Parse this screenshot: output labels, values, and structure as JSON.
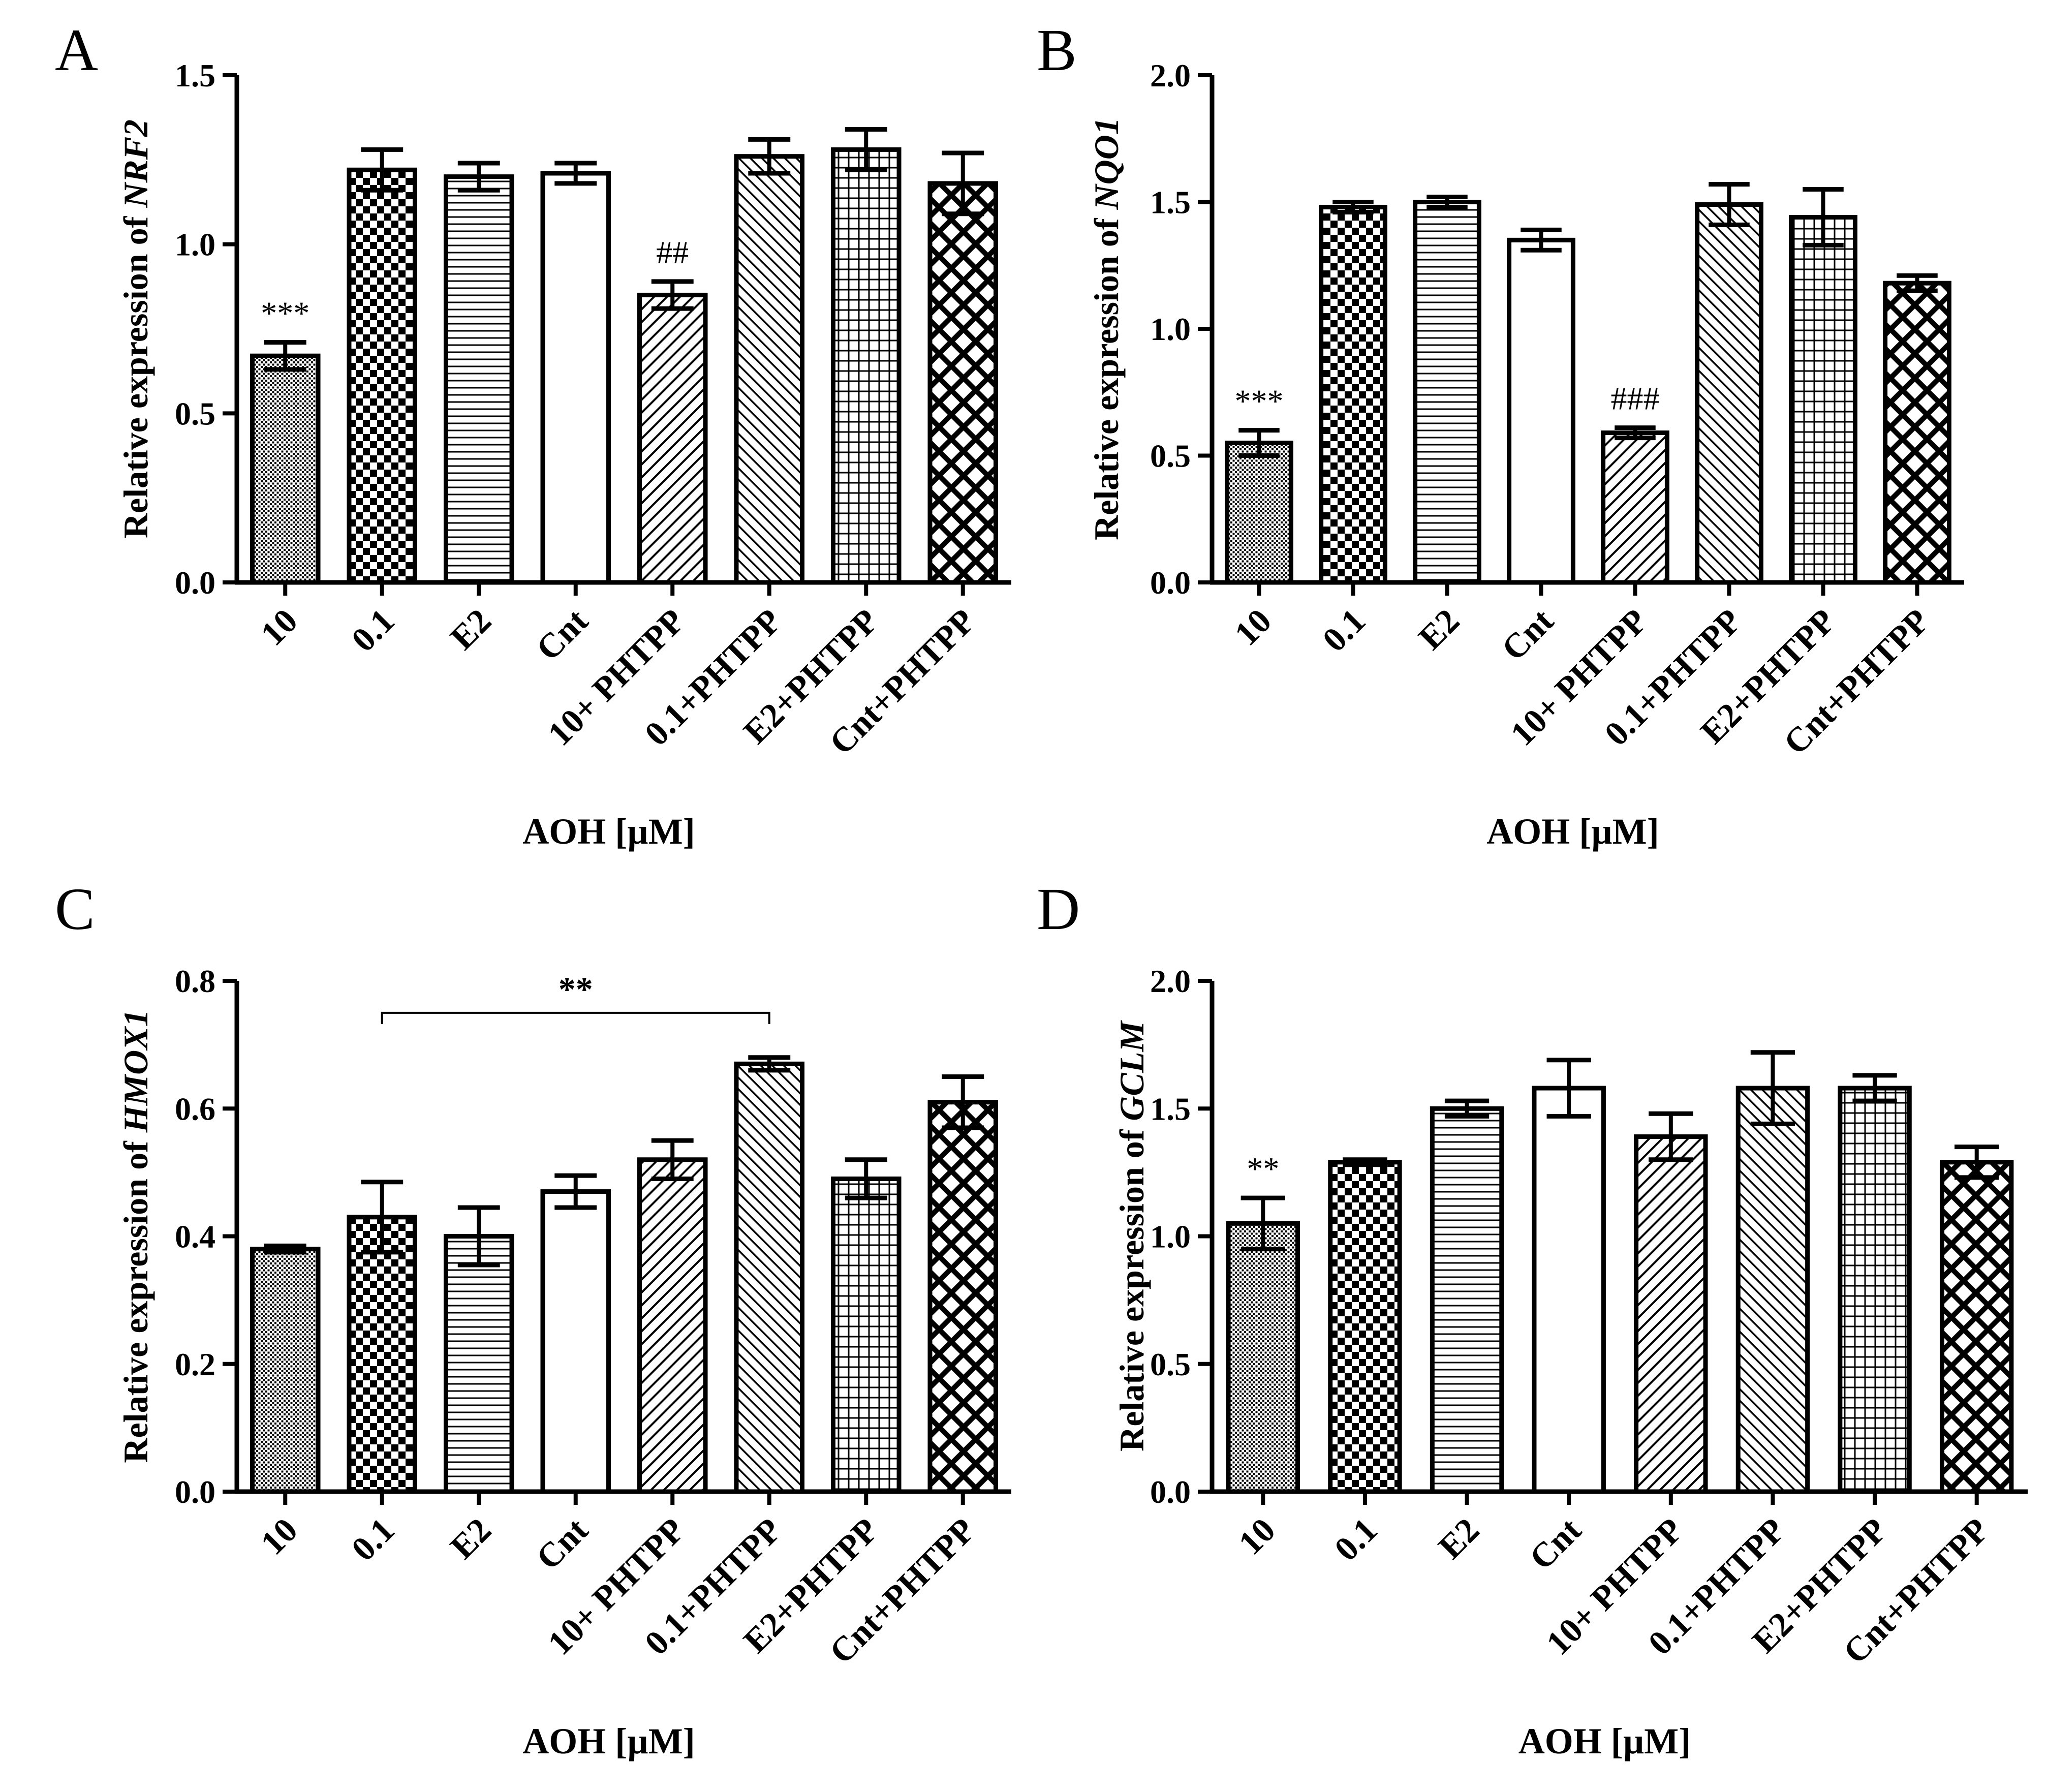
{
  "chart_data": [
    {
      "panel": "A",
      "type": "bar",
      "categories": [
        "10",
        "0.1",
        "E2",
        "Cnt",
        "10+ PHTPP",
        "0.1+PHTPP",
        "E2+PHTPP",
        "Cnt+PHTPP"
      ],
      "values": [
        0.67,
        1.22,
        1.2,
        1.21,
        0.85,
        1.26,
        1.28,
        1.18
      ],
      "errors": [
        0.04,
        0.06,
        0.04,
        0.03,
        0.04,
        0.05,
        0.06,
        0.09
      ],
      "patterns": [
        "dots",
        "checker",
        "hlines",
        "none",
        "diag",
        "backdiag",
        "grid",
        "crosshatch"
      ],
      "ylabel_prefix": "Relative expression of ",
      "ylabel_gene": "NRF2",
      "xlabel": "AOH [µM]",
      "ylim": [
        0,
        1.5
      ],
      "yticks": [
        "0.0",
        "0.5",
        "1.0",
        "1.5"
      ],
      "annotations": [
        {
          "category": "10",
          "text": "***"
        },
        {
          "category": "10+ PHTPP",
          "text": "##"
        }
      ]
    },
    {
      "panel": "B",
      "type": "bar",
      "categories": [
        "10",
        "0.1",
        "E2",
        "Cnt",
        "10+ PHTPP",
        "0.1+PHTPP",
        "E2+PHTPP",
        "Cnt+PHTPP"
      ],
      "values": [
        0.55,
        1.48,
        1.5,
        1.35,
        0.59,
        1.49,
        1.44,
        1.18
      ],
      "errors": [
        0.05,
        0.02,
        0.02,
        0.04,
        0.02,
        0.08,
        0.11,
        0.03
      ],
      "patterns": [
        "dots",
        "checker",
        "hlines",
        "none",
        "diag",
        "backdiag",
        "grid",
        "crosshatch"
      ],
      "ylabel_prefix": "Relative expression of ",
      "ylabel_gene": "NQO1",
      "xlabel": "AOH [µM]",
      "ylim": [
        0,
        2.0
      ],
      "yticks": [
        "0.0",
        "0.5",
        "1.0",
        "1.5",
        "2.0"
      ],
      "annotations": [
        {
          "category": "10",
          "text": "***"
        },
        {
          "category": "10+ PHTPP",
          "text": "###"
        }
      ]
    },
    {
      "panel": "C",
      "type": "bar",
      "categories": [
        "10",
        "0.1",
        "E2",
        "Cnt",
        "10+ PHTPP",
        "0.1+PHTPP",
        "E2+PHTPP",
        "Cnt+PHTPP"
      ],
      "values": [
        0.38,
        0.43,
        0.4,
        0.47,
        0.52,
        0.67,
        0.49,
        0.61
      ],
      "errors": [
        0.005,
        0.055,
        0.045,
        0.025,
        0.03,
        0.01,
        0.03,
        0.04
      ],
      "patterns": [
        "dots",
        "checker",
        "hlines",
        "none",
        "diag",
        "backdiag",
        "grid",
        "crosshatch"
      ],
      "ylabel_prefix": "Relative expression of ",
      "ylabel_gene": "HMOX1",
      "xlabel": "AOH [µM]",
      "ylim": [
        0,
        0.8
      ],
      "yticks": [
        "0.0",
        "0.2",
        "0.4",
        "0.6",
        "0.8"
      ],
      "annotations": [],
      "bracket": {
        "from": "0.1",
        "to": "0.1+PHTPP",
        "level": 0.75,
        "text": "**"
      }
    },
    {
      "panel": "D",
      "type": "bar",
      "categories": [
        "10",
        "0.1",
        "E2",
        "Cnt",
        "10+ PHTPP",
        "0.1+PHTPP",
        "E2+PHTPP",
        "Cnt+PHTPP"
      ],
      "values": [
        1.05,
        1.29,
        1.5,
        1.58,
        1.39,
        1.58,
        1.58,
        1.29
      ],
      "errors": [
        0.1,
        0.01,
        0.03,
        0.11,
        0.09,
        0.14,
        0.05,
        0.06
      ],
      "patterns": [
        "dots",
        "checker",
        "hlines",
        "none",
        "diag",
        "backdiag",
        "grid",
        "crosshatch"
      ],
      "ylabel_prefix": "Relative expression of ",
      "ylabel_gene": "GCLM",
      "xlabel": "AOH [µM]",
      "ylim": [
        0,
        2.0
      ],
      "yticks": [
        "0.0",
        "0.5",
        "1.0",
        "1.5",
        "2.0"
      ],
      "annotations": [
        {
          "category": "10",
          "text": "**"
        }
      ]
    }
  ]
}
